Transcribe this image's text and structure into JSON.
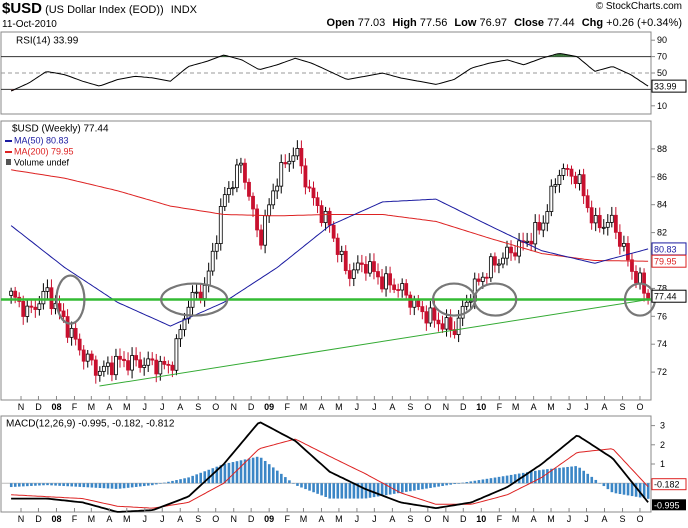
{
  "header": {
    "symbol": "$USD",
    "name": "(US Dollar Index (EOD))",
    "exchange": "INDX",
    "date": "11-Oct-2010",
    "brand": "© StockCharts.com",
    "open_label": "Open",
    "open": "77.03",
    "high_label": "High",
    "high": "77.56",
    "low_label": "Low",
    "low": "76.97",
    "close_label": "Close",
    "close": "77.44",
    "chg_label": "Chg",
    "chg": "+0.26 (+0.34%)"
  },
  "colors": {
    "price_up": "#000000",
    "price_down": "#c8102e",
    "ma50": "#1a1aa0",
    "ma200": "#dd2222",
    "support": "#33bb33",
    "trendline": "#33aa33",
    "histogram": "#3b86c6",
    "rsi_fill_high": "#3c7a3c",
    "rsi_fill_low": "#9a4444",
    "circle": "#777777"
  },
  "chart_data": [
    {
      "type": "line",
      "panel": "rsi",
      "title": "RSI(14) 33.99",
      "ylim": [
        0,
        100
      ],
      "yticks": [
        10,
        30,
        50,
        70,
        90
      ],
      "reference_lines": [
        30,
        50,
        70
      ],
      "last_label": "33.99",
      "series": [
        {
          "name": "RSI(14)",
          "x": [
            "2007-10",
            "2007-11",
            "2007-12",
            "2008-01",
            "2008-02",
            "2008-03",
            "2008-04",
            "2008-05",
            "2008-06",
            "2008-07",
            "2008-08",
            "2008-09",
            "2008-10",
            "2008-11",
            "2008-12",
            "2009-01",
            "2009-02",
            "2009-03",
            "2009-04",
            "2009-05",
            "2009-06",
            "2009-07",
            "2009-08",
            "2009-09",
            "2009-10",
            "2009-11",
            "2009-12",
            "2010-01",
            "2010-02",
            "2010-03",
            "2010-04",
            "2010-05",
            "2010-06",
            "2010-07",
            "2010-08",
            "2010-09",
            "2010-10"
          ],
          "values": [
            28,
            38,
            52,
            48,
            40,
            34,
            42,
            46,
            44,
            40,
            58,
            64,
            72,
            66,
            54,
            60,
            68,
            62,
            52,
            42,
            46,
            50,
            44,
            40,
            36,
            42,
            56,
            62,
            66,
            60,
            68,
            74,
            70,
            52,
            58,
            48,
            34
          ]
        }
      ]
    },
    {
      "type": "bar",
      "panel": "price",
      "title": "$USD (Weekly) 77.44",
      "ylim": [
        70,
        90
      ],
      "yticks": [
        72,
        74,
        76,
        78,
        80,
        82,
        84,
        86,
        88
      ],
      "x_tick_labels": [
        "N",
        "D",
        "08",
        "F",
        "M",
        "A",
        "M",
        "J",
        "J",
        "A",
        "S",
        "O",
        "N",
        "D",
        "09",
        "F",
        "M",
        "A",
        "M",
        "J",
        "J",
        "A",
        "S",
        "O",
        "N",
        "D",
        "10",
        "F",
        "M",
        "A",
        "M",
        "J",
        "J",
        "A",
        "S",
        "O"
      ],
      "legend": [
        "$USD (Weekly) 77.44",
        "MA(50) 80.83",
        "MA(200) 79.95",
        "Volume undef"
      ],
      "price_labels": {
        "ma50": "80.83",
        "ma200": "79.95",
        "close": "77.44"
      },
      "support_level": 77.2,
      "trendline": {
        "x": [
          "2008-03",
          "2010-10"
        ],
        "y": [
          71.0,
          77.2
        ]
      },
      "series": [
        {
          "name": "$USD (Weekly)",
          "x": [
            "2007-10",
            "2007-11",
            "2007-12",
            "2008-01",
            "2008-02",
            "2008-03",
            "2008-04",
            "2008-05",
            "2008-06",
            "2008-07",
            "2008-08",
            "2008-09",
            "2008-10",
            "2008-11",
            "2008-12",
            "2009-01",
            "2009-02",
            "2009-03",
            "2009-04",
            "2009-05",
            "2009-06",
            "2009-07",
            "2009-08",
            "2009-09",
            "2009-10",
            "2009-11",
            "2009-12",
            "2010-01",
            "2010-02",
            "2010-03",
            "2010-04",
            "2010-05",
            "2010-06",
            "2010-07",
            "2010-08",
            "2010-09",
            "2010-10"
          ],
          "values": [
            77.5,
            76.2,
            77.8,
            75.6,
            73.3,
            72.0,
            72.8,
            72.7,
            72.6,
            72.3,
            77.0,
            78.2,
            84.5,
            87.0,
            81.3,
            86.0,
            88.0,
            84.5,
            82.5,
            79.0,
            79.8,
            78.5,
            78.0,
            76.5,
            75.7,
            75.0,
            77.8,
            79.5,
            80.5,
            81.2,
            82.5,
            86.5,
            86.0,
            82.5,
            82.8,
            79.5,
            77.4
          ]
        },
        {
          "name": "MA(50)",
          "x": [
            "2007-10",
            "2008-01",
            "2008-04",
            "2008-07",
            "2008-10",
            "2009-01",
            "2009-04",
            "2009-07",
            "2009-10",
            "2010-01",
            "2010-04",
            "2010-07",
            "2010-10"
          ],
          "values": [
            82.5,
            79.5,
            77.0,
            75.3,
            77.0,
            79.5,
            82.5,
            84.2,
            84.4,
            82.5,
            80.7,
            79.8,
            80.83
          ]
        },
        {
          "name": "MA(200)",
          "x": [
            "2007-10",
            "2008-01",
            "2008-04",
            "2008-07",
            "2008-10",
            "2009-01",
            "2009-04",
            "2009-07",
            "2009-10",
            "2010-01",
            "2010-04",
            "2010-07",
            "2010-10"
          ],
          "values": [
            86.5,
            85.9,
            85.0,
            83.9,
            83.3,
            83.2,
            83.3,
            83.3,
            82.8,
            81.6,
            80.5,
            80.0,
            79.95
          ]
        }
      ]
    },
    {
      "type": "line",
      "panel": "macd",
      "title": "MACD(12,26,9) -0.995, -0.182, -0.812",
      "ylim": [
        -1.5,
        3.5
      ],
      "yticks": [
        0,
        1,
        2,
        3
      ],
      "last_labels": [
        "-0.182",
        "-0.995"
      ],
      "x_tick_labels": [
        "N",
        "D",
        "08",
        "F",
        "M",
        "A",
        "M",
        "J",
        "J",
        "A",
        "S",
        "O",
        "N",
        "D",
        "09",
        "F",
        "M",
        "A",
        "M",
        "J",
        "J",
        "A",
        "S",
        "O",
        "N",
        "D",
        "10",
        "F",
        "M",
        "A",
        "M",
        "J",
        "J",
        "A",
        "S",
        "O"
      ],
      "series": [
        {
          "name": "MACD",
          "x": [
            "2007-10",
            "2007-12",
            "2008-02",
            "2008-04",
            "2008-06",
            "2008-08",
            "2008-10",
            "2008-12",
            "2009-02",
            "2009-04",
            "2009-06",
            "2009-08",
            "2009-10",
            "2009-12",
            "2010-02",
            "2010-04",
            "2010-06",
            "2010-08",
            "2010-10"
          ],
          "values": [
            -0.8,
            -0.8,
            -1.0,
            -1.5,
            -1.4,
            -0.7,
            1.0,
            3.2,
            2.2,
            0.6,
            -0.3,
            -1.0,
            -1.3,
            -1.0,
            -0.2,
            1.0,
            2.5,
            1.3,
            -0.995
          ]
        },
        {
          "name": "Signal",
          "x": [
            "2007-10",
            "2007-12",
            "2008-02",
            "2008-04",
            "2008-06",
            "2008-08",
            "2008-10",
            "2008-12",
            "2009-02",
            "2009-04",
            "2009-06",
            "2009-08",
            "2009-10",
            "2009-12",
            "2010-02",
            "2010-04",
            "2010-06",
            "2010-08",
            "2010-10"
          ],
          "values": [
            -0.6,
            -0.7,
            -0.8,
            -1.2,
            -1.3,
            -1.0,
            0.0,
            1.8,
            2.3,
            1.4,
            0.5,
            -0.5,
            -1.1,
            -1.1,
            -0.6,
            0.3,
            1.6,
            1.8,
            -0.182
          ]
        },
        {
          "name": "Histogram",
          "x": [
            "2007-10",
            "2007-12",
            "2008-02",
            "2008-04",
            "2008-06",
            "2008-08",
            "2008-10",
            "2008-12",
            "2009-02",
            "2009-04",
            "2009-06",
            "2009-08",
            "2009-10",
            "2009-12",
            "2010-02",
            "2010-04",
            "2010-06",
            "2010-08",
            "2010-10"
          ],
          "values": [
            -0.2,
            -0.1,
            -0.2,
            -0.3,
            -0.1,
            0.3,
            1.0,
            1.4,
            -0.1,
            -0.8,
            -0.8,
            -0.5,
            -0.2,
            0.1,
            0.4,
            0.7,
            0.9,
            -0.5,
            -0.812
          ]
        }
      ]
    }
  ]
}
